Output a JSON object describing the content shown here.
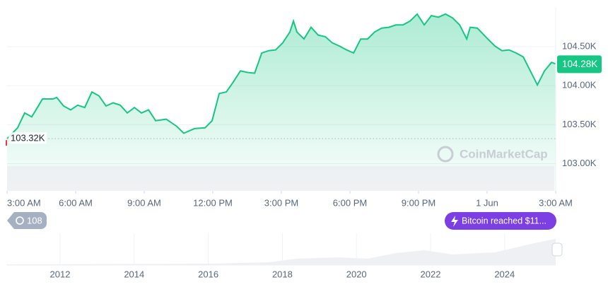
{
  "chart_data": {
    "type": "line",
    "x": [
      0,
      0.46,
      0.77,
      1.08,
      1.39,
      1.55,
      2.01,
      2.17,
      2.47,
      2.78,
      3.09,
      3.4,
      3.71,
      4.02,
      4.33,
      4.64,
      4.95,
      5.26,
      5.57,
      5.88,
      6.19,
      6.5,
      6.96,
      7.42,
      7.73,
      8.2,
      8.66,
      8.97,
      9.28,
      9.59,
      9.9,
      10.21,
      10.52,
      10.83,
      11.14,
      11.44,
      11.75,
      12.06,
      12.37,
      12.53,
      12.68,
      12.99,
      13.3,
      13.61,
      13.92,
      14.23,
      14.54,
      14.85,
      15.16,
      15.47,
      15.77,
      16.08,
      16.39,
      16.7,
      17.01,
      17.32,
      17.63,
      17.94,
      18.25,
      18.56,
      18.87,
      19.18,
      19.49,
      19.8,
      20.11,
      20.26,
      20.57,
      21.03,
      21.34,
      21.65,
      21.96,
      22.27,
      22.58,
      22.89,
      23.2,
      23.51,
      23.82,
      24.0
    ],
    "series": [
      {
        "color": "#16c784",
        "values": [
          103.32,
          103.46,
          103.65,
          103.6,
          103.75,
          103.83,
          103.83,
          103.85,
          103.74,
          103.69,
          103.75,
          103.72,
          103.92,
          103.87,
          103.74,
          103.78,
          103.75,
          103.65,
          103.72,
          103.65,
          103.69,
          103.55,
          103.57,
          103.48,
          103.39,
          103.45,
          103.46,
          103.55,
          103.9,
          103.92,
          104.05,
          104.19,
          104.17,
          104.16,
          104.42,
          104.45,
          104.46,
          104.55,
          104.69,
          104.83,
          104.69,
          104.6,
          104.75,
          104.65,
          104.63,
          104.55,
          104.51,
          104.46,
          104.42,
          104.6,
          104.6,
          104.69,
          104.74,
          104.75,
          104.78,
          104.78,
          104.83,
          104.92,
          104.78,
          104.9,
          104.88,
          104.92,
          104.87,
          104.78,
          104.6,
          104.75,
          104.74,
          104.6,
          104.51,
          104.45,
          104.46,
          104.42,
          104.37,
          104.19,
          104.01,
          104.19,
          104.3,
          104.28
        ]
      }
    ],
    "xlim": [
      0,
      24
    ],
    "xticks": [
      {
        "value": 0,
        "label": "3:00 AM"
      },
      {
        "value": 3,
        "label": "6:00 AM"
      },
      {
        "value": 6,
        "label": "9:00 AM"
      },
      {
        "value": 9,
        "label": "12:00 PM"
      },
      {
        "value": 12,
        "label": "3:00 PM"
      },
      {
        "value": 15,
        "label": "6:00 PM"
      },
      {
        "value": 18,
        "label": "9:00 PM"
      },
      {
        "value": 21,
        "label": "1 Jun"
      },
      {
        "value": 24,
        "label": "3:00 AM"
      }
    ],
    "ylim": [
      102.65,
      105.01
    ],
    "yticks": [
      {
        "value": 103.0,
        "label": "103.00K"
      },
      {
        "value": 103.5,
        "label": "103.50K"
      },
      {
        "value": 104.0,
        "label": "104.00K"
      },
      {
        "value": 104.5,
        "label": "104.50K"
      }
    ],
    "grid": true,
    "current_price": {
      "value": 104.28,
      "label": "104.28K"
    },
    "reference_price": {
      "value": 103.32,
      "label": "103.32K"
    },
    "watermark": "CoinMarketCap",
    "history_count": 108,
    "event_badge": "Bitcoin reached $11...",
    "navigator_years": [
      "2012",
      "2014",
      "2016",
      "2018",
      "2020",
      "2022",
      "2024"
    ]
  }
}
